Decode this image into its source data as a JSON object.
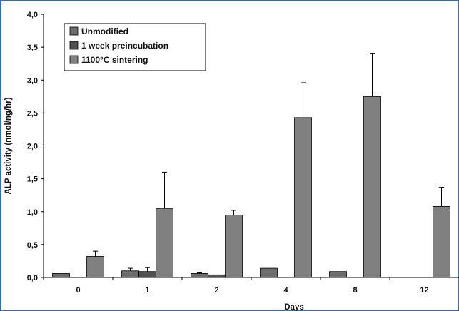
{
  "chart_data": {
    "type": "bar",
    "title": "",
    "xlabel": "Days",
    "ylabel": "ALP activity (nmol/ng/hr)",
    "categories": [
      "0",
      "1",
      "2",
      "4",
      "8",
      "12"
    ],
    "ylim": [
      0,
      4.0
    ],
    "yticks": [
      "0,0",
      "0,5",
      "1,0",
      "1,5",
      "2,0",
      "2,5",
      "3,0",
      "3,5",
      "4,0"
    ],
    "legend_position": "top-left",
    "grid": false,
    "series": [
      {
        "name": "Unmodified",
        "color": "#6e6e6e",
        "values": [
          0.06,
          0.1,
          0.06,
          0.14,
          0.09,
          null
        ],
        "errors": [
          null,
          0.04,
          0.01,
          null,
          null,
          null
        ]
      },
      {
        "name": "1 week preincubation",
        "color": "#505050",
        "values": [
          null,
          0.09,
          0.04,
          null,
          null,
          null
        ],
        "errors": [
          null,
          0.06,
          null,
          null,
          null,
          null
        ]
      },
      {
        "name": "1100°C sintering",
        "color": "#808080",
        "values": [
          0.32,
          1.05,
          0.95,
          2.43,
          2.75,
          1.08
        ],
        "errors": [
          0.08,
          0.55,
          0.07,
          0.53,
          0.65,
          0.29
        ]
      }
    ]
  }
}
